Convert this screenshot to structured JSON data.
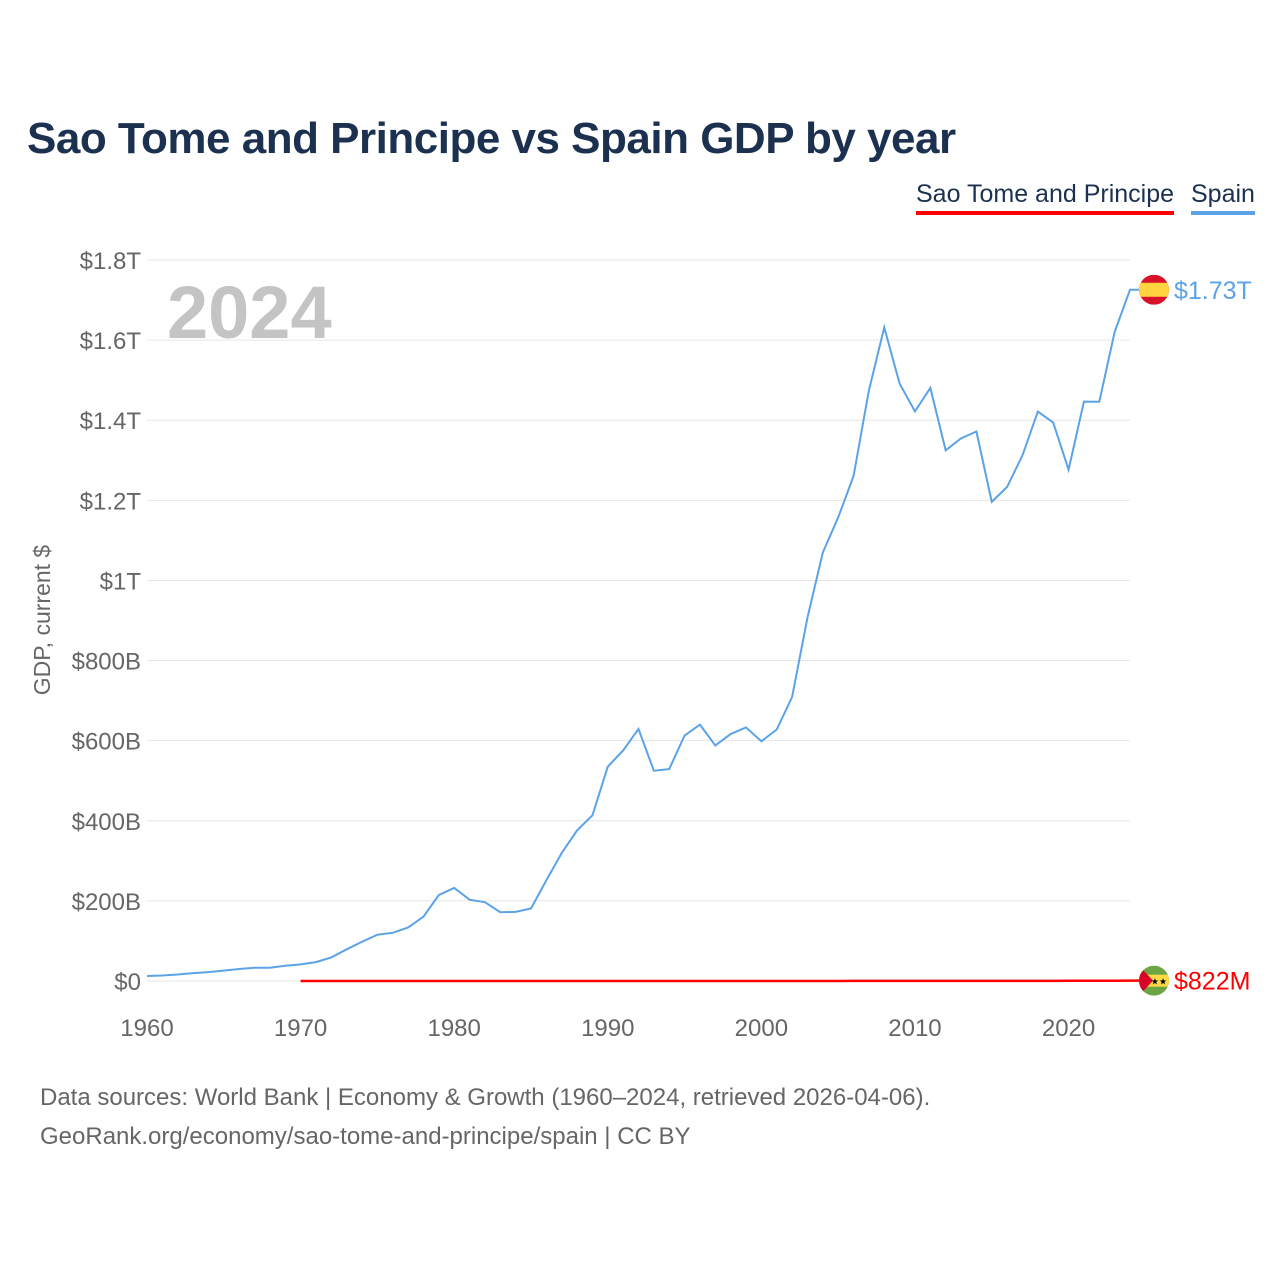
{
  "chart_data": {
    "type": "line",
    "title": "Sao Tome and Principe vs Spain GDP by year",
    "xlabel": "",
    "ylabel": "GDP, current $",
    "year_watermark": "2024",
    "xlim": [
      1960,
      2024
    ],
    "ylim": [
      0,
      1.8
    ],
    "y_unit": "trillion USD",
    "grid": true,
    "legend_placement": "top-right",
    "x_ticks": [
      "1960",
      "1970",
      "1980",
      "1990",
      "2000",
      "2010",
      "2020"
    ],
    "y_ticks": [
      {
        "value": 0,
        "label": "$0"
      },
      {
        "value": 0.2,
        "label": "$200B"
      },
      {
        "value": 0.4,
        "label": "$400B"
      },
      {
        "value": 0.6,
        "label": "$600B"
      },
      {
        "value": 0.8,
        "label": "$800B"
      },
      {
        "value": 1.0,
        "label": "$1T"
      },
      {
        "value": 1.2,
        "label": "$1.2T"
      },
      {
        "value": 1.4,
        "label": "$1.4T"
      },
      {
        "value": 1.6,
        "label": "$1.6T"
      },
      {
        "value": 1.8,
        "label": "$1.8T"
      }
    ],
    "series": [
      {
        "name": "Sao Tome and Principe",
        "color": "#ff0000",
        "flag": "sao-tome-and-principe-flag",
        "end_label": "$822M",
        "start_year": 1970,
        "values": [
          3e-05,
          3e-05,
          4e-05,
          5e-05,
          6e-05,
          6e-05,
          7e-05,
          8e-05,
          9e-05,
          0.0001,
          5e-05,
          4e-05,
          5e-05,
          5e-05,
          4e-05,
          4e-05,
          4e-05,
          5e-05,
          5e-05,
          5e-05,
          6e-05,
          6e-05,
          6e-05,
          6e-05,
          7e-05,
          6e-05,
          7e-05,
          7e-05,
          7e-05,
          8e-05,
          9e-05,
          9e-05,
          0.0001,
          0.00011,
          0.00013,
          0.00015,
          0.00016,
          0.00018,
          0.00022,
          0.00021,
          0.0002,
          0.00025,
          0.0003,
          0.00033,
          0.00035,
          0.00032,
          0.00034,
          0.00037,
          0.00041,
          0.00043,
          0.00048,
          0.00053,
          0.00055,
          0.00068,
          0.00082
        ]
      },
      {
        "name": "Spain",
        "color": "#5ba3e6",
        "flag": "spain-flag",
        "end_label": "$1.73T",
        "start_year": 1960,
        "values": [
          0.0124,
          0.0138,
          0.0161,
          0.0196,
          0.0222,
          0.0259,
          0.03,
          0.033,
          0.0331,
          0.038,
          0.0416,
          0.0471,
          0.0589,
          0.0791,
          0.0979,
          0.1156,
          0.1203,
          0.1336,
          0.1607,
          0.2146,
          0.2324,
          0.203,
          0.1968,
          0.1717,
          0.1725,
          0.181,
          0.2514,
          0.3194,
          0.3759,
          0.4135,
          0.5351,
          0.5756,
          0.6292,
          0.525,
          0.5291,
          0.6129,
          0.6401,
          0.5881,
          0.6165,
          0.6332,
          0.5984,
          0.6278,
          0.7089,
          0.9071,
          1.0696,
          1.1573,
          1.2604,
          1.4742,
          1.6317,
          1.4915,
          1.4221,
          1.4807,
          1.3248,
          1.3548,
          1.3718,
          1.1962,
          1.2336,
          1.3125,
          1.4217,
          1.3943,
          1.2764,
          1.4465,
          1.446,
          1.6201,
          1.7257
        ]
      }
    ]
  },
  "footer": {
    "line1": "Data sources: World Bank | Economy & Growth (1960–2024, retrieved 2026-04-06).",
    "line2": "GeoRank.org/economy/sao-tome-and-principe/spain | CC BY"
  }
}
